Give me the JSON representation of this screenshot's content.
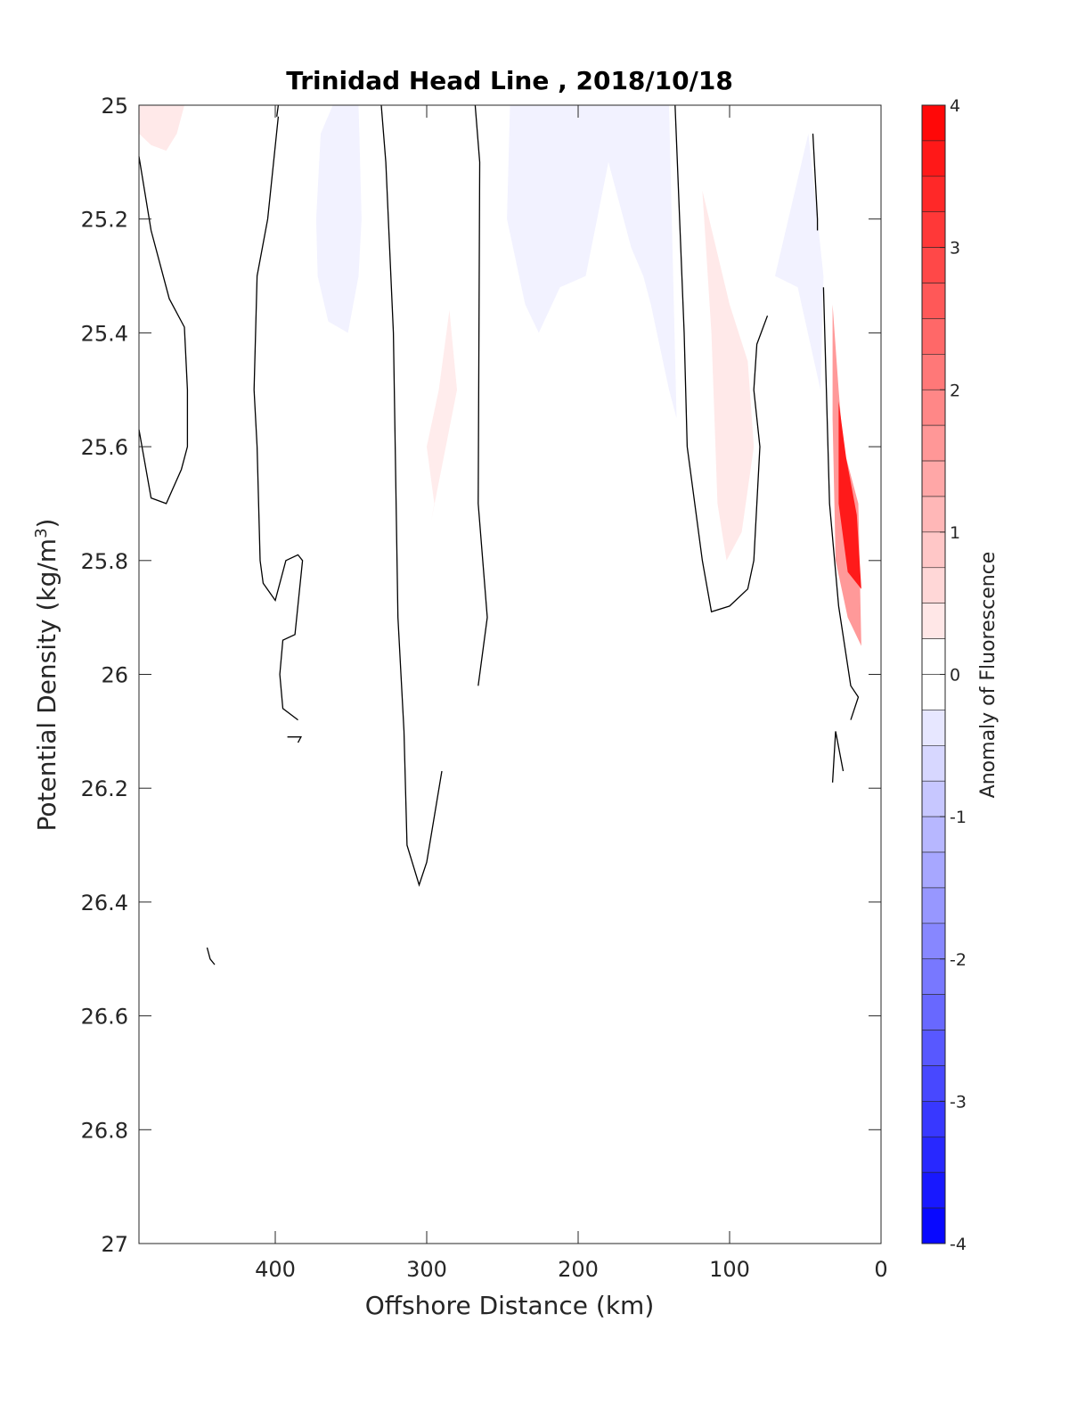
{
  "chart_data": {
    "type": "contour",
    "title": "Trinidad Head Line , 2018/10/18",
    "xlabel": "Offshore Distance (km)",
    "ylabel": "Potential Density (kg/m",
    "ylabel_sup": "3",
    "ylabel_close": ")",
    "x_reversed": true,
    "y_reversed": true,
    "xlim": [
      0,
      490
    ],
    "ylim": [
      25,
      27
    ],
    "xticks": [
      400,
      300,
      200,
      100,
      0
    ],
    "yticks": [
      25,
      25.2,
      25.4,
      25.6,
      25.8,
      26,
      26.2,
      26.4,
      26.6,
      26.8,
      27
    ],
    "colorbar": {
      "label": "Anomaly of Fluorescence",
      "range": [
        -4,
        4
      ],
      "ticks": [
        4,
        3,
        2,
        1,
        0,
        -1,
        -2,
        -3,
        -4
      ],
      "levels": 32,
      "color_low": "#0000ff",
      "color_mid": "#ffffff",
      "color_high": "#ff0000"
    },
    "filled_regions": [
      {
        "anomaly": 0.35,
        "points": [
          [
            490,
            25
          ],
          [
            460,
            25
          ],
          [
            465,
            25.05
          ],
          [
            472,
            25.08
          ],
          [
            482,
            25.07
          ],
          [
            490,
            25.05
          ]
        ]
      },
      {
        "anomaly": -0.2,
        "points": [
          [
            362,
            25
          ],
          [
            345,
            25
          ],
          [
            343,
            25.2
          ],
          [
            345,
            25.3
          ],
          [
            352,
            25.4
          ],
          [
            365,
            25.38
          ],
          [
            372,
            25.3
          ],
          [
            373,
            25.2
          ],
          [
            370,
            25.05
          ]
        ]
      },
      {
        "anomaly": 0.3,
        "points": [
          [
            285,
            25.36
          ],
          [
            280,
            25.5
          ],
          [
            297,
            25.73
          ],
          [
            295,
            25.7
          ],
          [
            300,
            25.6
          ],
          [
            292,
            25.5
          ]
        ]
      },
      {
        "anomaly": -0.2,
        "points": [
          [
            245,
            25
          ],
          [
            140,
            25
          ],
          [
            135,
            25.55
          ],
          [
            140,
            25.5
          ],
          [
            152,
            25.35
          ],
          [
            157,
            25.3
          ],
          [
            165,
            25.25
          ],
          [
            180,
            25.1
          ],
          [
            195,
            25.3
          ],
          [
            212,
            25.32
          ],
          [
            226,
            25.4
          ],
          [
            235,
            25.35
          ],
          [
            247,
            25.2
          ]
        ]
      },
      {
        "anomaly": 0.35,
        "points": [
          [
            118,
            25.15
          ],
          [
            112,
            25.4
          ],
          [
            108,
            25.7
          ],
          [
            102,
            25.8
          ],
          [
            92,
            25.75
          ],
          [
            84,
            25.6
          ],
          [
            88,
            25.45
          ],
          [
            100,
            25.35
          ]
        ]
      },
      {
        "anomaly": -0.2,
        "points": [
          [
            48,
            25.05
          ],
          [
            38,
            25.3
          ],
          [
            40,
            25.5
          ],
          [
            55,
            25.32
          ],
          [
            70,
            25.3
          ]
        ]
      },
      {
        "anomaly": 1.6,
        "points": [
          [
            32,
            25.35
          ],
          [
            28,
            25.5
          ],
          [
            25,
            25.6
          ],
          [
            15,
            25.7
          ],
          [
            13,
            25.95
          ],
          [
            22,
            25.9
          ],
          [
            30,
            25.8
          ],
          [
            32,
            25.55
          ]
        ]
      },
      {
        "anomaly": 3.6,
        "points": [
          [
            28,
            25.52
          ],
          [
            23,
            25.62
          ],
          [
            16,
            25.72
          ],
          [
            13,
            25.85
          ],
          [
            22,
            25.82
          ],
          [
            28,
            25.7
          ]
        ]
      }
    ],
    "contour_lines": [
      [
        [
          490,
          25.09
        ],
        [
          482,
          25.22
        ],
        [
          470,
          25.34
        ],
        [
          460,
          25.39
        ],
        [
          458,
          25.5
        ],
        [
          458,
          25.6
        ],
        [
          462,
          25.64
        ],
        [
          472,
          25.7
        ],
        [
          482,
          25.69
        ],
        [
          490,
          25.57
        ]
      ],
      [
        [
          398,
          25
        ],
        [
          399,
          25.02
        ]
      ],
      [
        [
          398,
          25.02
        ],
        [
          405,
          25.2
        ],
        [
          412,
          25.3
        ],
        [
          414,
          25.5
        ],
        [
          412,
          25.6
        ],
        [
          410,
          25.8
        ],
        [
          408,
          25.84
        ],
        [
          400,
          25.87
        ],
        [
          393,
          25.8
        ],
        [
          385,
          25.79
        ],
        [
          382,
          25.8
        ],
        [
          387,
          25.93
        ],
        [
          395,
          25.94
        ],
        [
          397,
          26
        ],
        [
          395,
          26.06
        ],
        [
          385,
          26.08
        ]
      ],
      [
        [
          392,
          26.11
        ],
        [
          383,
          26.11
        ],
        [
          385,
          26.12
        ]
      ],
      [
        [
          330,
          25
        ],
        [
          327,
          25.1
        ],
        [
          322,
          25.4
        ],
        [
          319,
          25.9
        ],
        [
          315,
          26.1
        ],
        [
          313,
          26.3
        ],
        [
          305,
          26.37
        ],
        [
          300,
          26.33
        ],
        [
          290,
          26.17
        ]
      ],
      [
        [
          268,
          25
        ],
        [
          265,
          25.1
        ],
        [
          266,
          25.7
        ],
        [
          260,
          25.9
        ],
        [
          266,
          26.02
        ]
      ],
      [
        [
          136,
          25
        ],
        [
          130,
          25.4
        ],
        [
          128,
          25.6
        ],
        [
          118,
          25.8
        ],
        [
          112,
          25.89
        ],
        [
          100,
          25.88
        ],
        [
          88,
          25.85
        ],
        [
          84,
          25.8
        ],
        [
          80,
          25.6
        ],
        [
          84,
          25.5
        ],
        [
          82,
          25.42
        ],
        [
          75,
          25.37
        ]
      ],
      [
        [
          45,
          25.05
        ],
        [
          42,
          25.2
        ],
        [
          42,
          25.22
        ]
      ],
      [
        [
          38,
          25.32
        ],
        [
          34,
          25.7
        ],
        [
          30,
          25.82
        ],
        [
          28,
          25.88
        ],
        [
          20,
          26.02
        ],
        [
          15,
          26.04
        ],
        [
          20,
          26.08
        ]
      ],
      [
        [
          32,
          26.19
        ],
        [
          30,
          26.1
        ],
        [
          25,
          26.17
        ]
      ],
      [
        [
          445,
          26.48
        ],
        [
          443,
          26.5
        ],
        [
          440,
          26.51
        ]
      ]
    ]
  }
}
